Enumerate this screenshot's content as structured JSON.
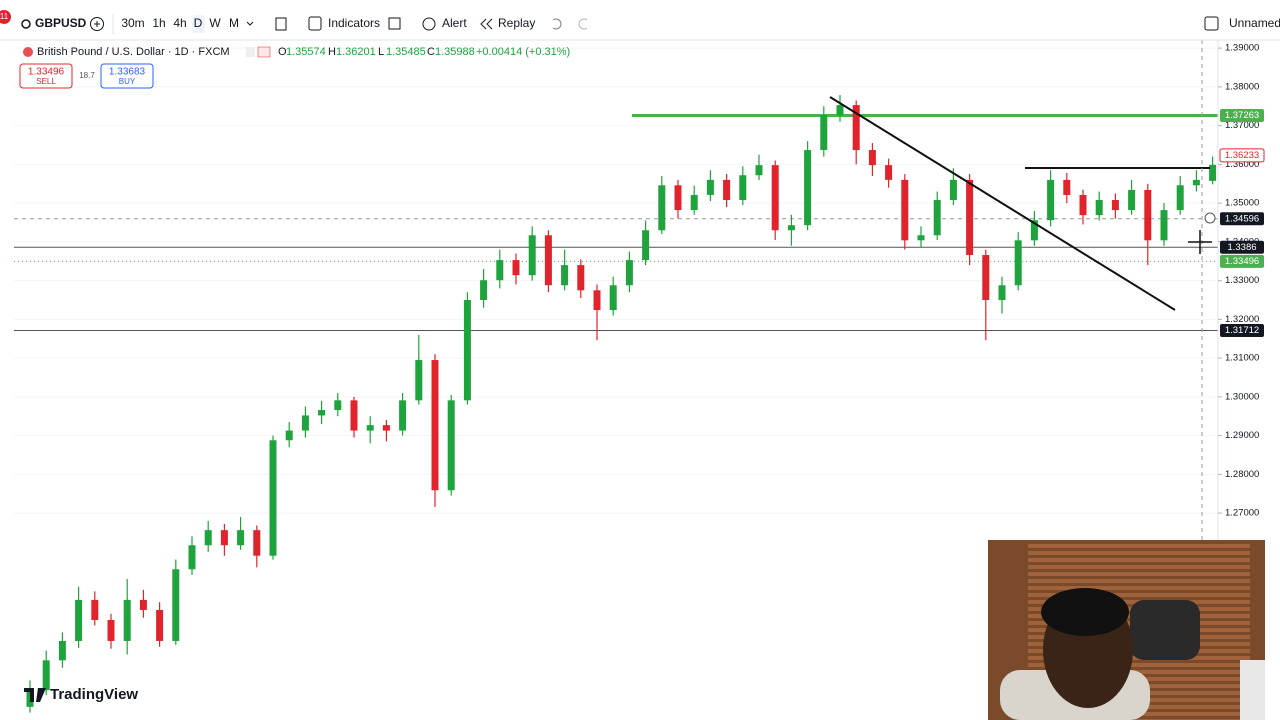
{
  "toolbar": {
    "badge": "11",
    "symbol": "GBPUSD",
    "intervals": [
      "30m",
      "1h",
      "4h",
      "D",
      "W",
      "M"
    ],
    "indicators": "Indicators",
    "alert": "Alert",
    "replay": "Replay",
    "layout_name": "Unnamed"
  },
  "legend": {
    "title": "British Pound / U.S. Dollar · 1D · FXCM",
    "ohlc_labels": [
      "O",
      "H",
      "L",
      "C"
    ],
    "ohlc": [
      1.35574,
      1.36201,
      1.35485,
      1.35988
    ],
    "change": "+0.00414 (+0.31%)"
  },
  "trade": {
    "sell_price": 1.33496,
    "sell": "SELL",
    "spread": 18.7,
    "buy_price": 1.33683,
    "buy": "BUY"
  },
  "logo": "TradingView",
  "chart_data": {
    "type": "candlestick",
    "up_color": "#1fa33c",
    "down_color": "#e0242c",
    "ylim": [
      1.2166,
      1.3921
    ],
    "yticks": [
      {
        "value": 1.39,
        "label": "1.39000"
      },
      {
        "value": 1.38,
        "label": "1.38000"
      },
      {
        "value": 1.37,
        "label": "1.37000"
      },
      {
        "value": 1.36,
        "label": "1.36000"
      },
      {
        "value": 1.35,
        "label": "1.35000"
      },
      {
        "value": 1.34,
        "label": "1.34000"
      },
      {
        "value": 1.33,
        "label": "1.33000"
      },
      {
        "value": 1.32,
        "label": "1.32000"
      },
      {
        "value": 1.31,
        "label": "1.31000"
      },
      {
        "value": 1.3,
        "label": "1.30000"
      },
      {
        "value": 1.29,
        "label": "1.29000"
      },
      {
        "value": 1.28,
        "label": "1.28000"
      },
      {
        "value": 1.27,
        "label": "1.27000"
      }
    ],
    "levels": [
      {
        "value": 1.37263,
        "color": "#4caf50",
        "style": "solid"
      },
      {
        "value": 1.36233,
        "color": "#e0242c",
        "style": "none"
      },
      {
        "value": 1.34596,
        "color": "#9598a1",
        "style": "dashed"
      },
      {
        "value": 1.3386,
        "color": "#555555",
        "style": "solid"
      },
      {
        "value": 1.33496,
        "color": "#4caf50",
        "style": "dotted"
      },
      {
        "value": 1.31712,
        "color": "#555555",
        "style": "solid"
      }
    ],
    "candles": [
      [
        1.22,
        1.2268,
        1.2185,
        1.2243
      ],
      [
        1.2243,
        1.2345,
        1.223,
        1.232
      ],
      [
        1.232,
        1.2392,
        1.2301,
        1.237
      ],
      [
        1.237,
        1.251,
        1.2352,
        1.2476
      ],
      [
        1.2476,
        1.2498,
        1.241,
        1.2424
      ],
      [
        1.2424,
        1.244,
        1.235,
        1.237
      ],
      [
        1.237,
        1.253,
        1.2335,
        1.2476
      ],
      [
        1.2476,
        1.2502,
        1.243,
        1.245
      ],
      [
        1.245,
        1.247,
        1.2355,
        1.237
      ],
      [
        1.237,
        1.258,
        1.236,
        1.2555
      ],
      [
        1.2555,
        1.264,
        1.254,
        1.2617
      ],
      [
        1.2617,
        1.268,
        1.26,
        1.2656
      ],
      [
        1.2656,
        1.2672,
        1.259,
        1.2617
      ],
      [
        1.2617,
        1.269,
        1.2605,
        1.2656
      ],
      [
        1.2656,
        1.2668,
        1.256,
        1.259
      ],
      [
        1.259,
        1.29,
        1.258,
        1.2888
      ],
      [
        1.2888,
        1.2935,
        1.287,
        1.2913
      ],
      [
        1.2913,
        1.2975,
        1.2895,
        1.2952
      ],
      [
        1.2952,
        1.299,
        1.293,
        1.2966
      ],
      [
        1.2966,
        1.301,
        1.295,
        1.2991
      ],
      [
        1.2991,
        1.3,
        1.2895,
        1.2913
      ],
      [
        1.2913,
        1.295,
        1.288,
        1.2927
      ],
      [
        1.2927,
        1.294,
        1.2885,
        1.2913
      ],
      [
        1.2913,
        1.301,
        1.29,
        1.2991
      ],
      [
        1.2991,
        1.316,
        1.298,
        1.3095
      ],
      [
        1.3095,
        1.311,
        1.2716,
        1.2759
      ],
      [
        1.2759,
        1.3005,
        1.2745,
        1.2991
      ],
      [
        1.2991,
        1.327,
        1.298,
        1.325
      ],
      [
        1.325,
        1.333,
        1.323,
        1.3301
      ],
      [
        1.3301,
        1.338,
        1.328,
        1.3353
      ],
      [
        1.3353,
        1.337,
        1.329,
        1.3314
      ],
      [
        1.3314,
        1.344,
        1.33,
        1.3417
      ],
      [
        1.3417,
        1.343,
        1.327,
        1.3288
      ],
      [
        1.3288,
        1.338,
        1.3275,
        1.334
      ],
      [
        1.334,
        1.3355,
        1.3255,
        1.3275
      ],
      [
        1.3275,
        1.329,
        1.3146,
        1.3224
      ],
      [
        1.3224,
        1.331,
        1.321,
        1.3288
      ],
      [
        1.3288,
        1.3375,
        1.327,
        1.3353
      ],
      [
        1.3353,
        1.3455,
        1.334,
        1.343
      ],
      [
        1.343,
        1.357,
        1.342,
        1.3546
      ],
      [
        1.3546,
        1.356,
        1.346,
        1.3482
      ],
      [
        1.3482,
        1.3545,
        1.347,
        1.3521
      ],
      [
        1.3521,
        1.3585,
        1.3505,
        1.356
      ],
      [
        1.356,
        1.3575,
        1.349,
        1.3508
      ],
      [
        1.3508,
        1.3595,
        1.3495,
        1.3572
      ],
      [
        1.3572,
        1.3625,
        1.356,
        1.3598
      ],
      [
        1.3598,
        1.361,
        1.3405,
        1.343
      ],
      [
        1.343,
        1.347,
        1.339,
        1.3443
      ],
      [
        1.3443,
        1.366,
        1.343,
        1.3637
      ],
      [
        1.3637,
        1.375,
        1.362,
        1.3727
      ],
      [
        1.3727,
        1.3779,
        1.371,
        1.3753
      ],
      [
        1.3753,
        1.3765,
        1.36,
        1.3637
      ],
      [
        1.3637,
        1.3655,
        1.357,
        1.3598
      ],
      [
        1.3598,
        1.3615,
        1.354,
        1.356
      ],
      [
        1.356,
        1.3575,
        1.338,
        1.3404
      ],
      [
        1.3404,
        1.344,
        1.3385,
        1.3417
      ],
      [
        1.3417,
        1.353,
        1.3405,
        1.3508
      ],
      [
        1.3508,
        1.359,
        1.3495,
        1.356
      ],
      [
        1.356,
        1.3575,
        1.334,
        1.3366
      ],
      [
        1.3366,
        1.338,
        1.3146,
        1.325
      ],
      [
        1.325,
        1.331,
        1.3215,
        1.3288
      ],
      [
        1.3288,
        1.3425,
        1.3275,
        1.3404
      ],
      [
        1.3404,
        1.348,
        1.339,
        1.3456
      ],
      [
        1.3456,
        1.3585,
        1.344,
        1.356
      ],
      [
        1.356,
        1.3578,
        1.35,
        1.3521
      ],
      [
        1.3521,
        1.3535,
        1.3445,
        1.3469
      ],
      [
        1.3469,
        1.353,
        1.3455,
        1.3508
      ],
      [
        1.3508,
        1.3525,
        1.346,
        1.3482
      ],
      [
        1.3482,
        1.356,
        1.347,
        1.3534
      ],
      [
        1.3534,
        1.355,
        1.334,
        1.3404
      ],
      [
        1.3404,
        1.35,
        1.339,
        1.3482
      ],
      [
        1.3482,
        1.357,
        1.347,
        1.3546
      ],
      [
        1.3546,
        1.3585,
        1.353,
        1.356
      ],
      [
        1.35574,
        1.36201,
        1.35485,
        1.35988
      ]
    ]
  }
}
